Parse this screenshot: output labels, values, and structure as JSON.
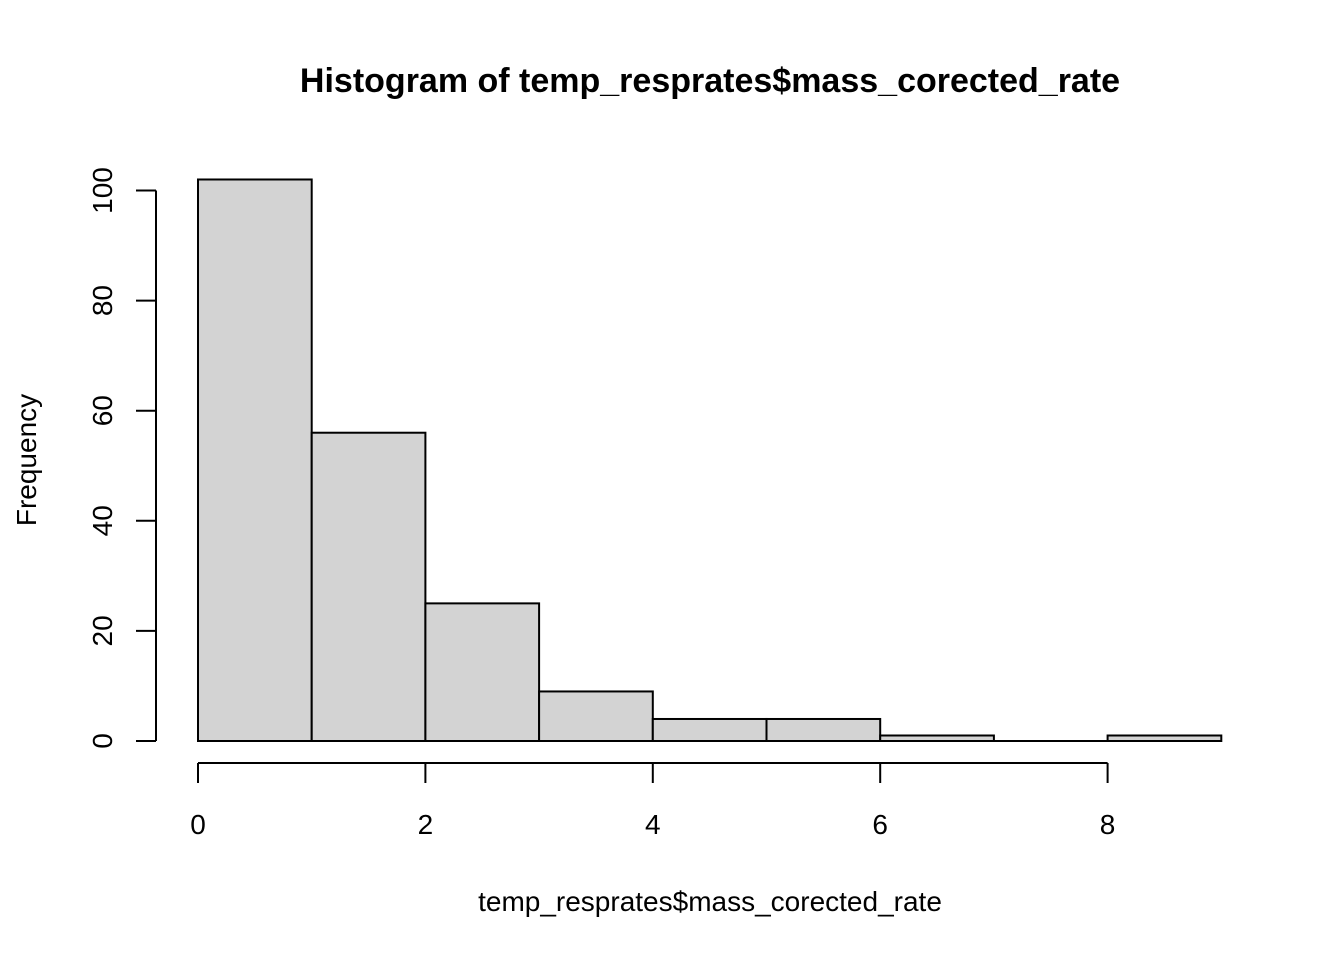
{
  "chart_data": {
    "type": "bar",
    "title": "Histogram of temp_resprates$mass_corected_rate",
    "xlabel": "temp_resprates$mass_corected_rate",
    "ylabel": "Frequency",
    "bins": [
      {
        "from": 0,
        "to": 1,
        "count": 102
      },
      {
        "from": 1,
        "to": 2,
        "count": 56
      },
      {
        "from": 2,
        "to": 3,
        "count": 25
      },
      {
        "from": 3,
        "to": 4,
        "count": 9
      },
      {
        "from": 4,
        "to": 5,
        "count": 4
      },
      {
        "from": 5,
        "to": 6,
        "count": 4
      },
      {
        "from": 6,
        "to": 7,
        "count": 1
      },
      {
        "from": 7,
        "to": 8,
        "count": 0
      },
      {
        "from": 8,
        "to": 9,
        "count": 1
      }
    ],
    "xticks": [
      "0",
      "2",
      "4",
      "6",
      "8"
    ],
    "yticks": [
      "0",
      "20",
      "40",
      "60",
      "80",
      "100"
    ],
    "xlim": [
      0,
      9
    ],
    "ylim": [
      0,
      102
    ],
    "bar_fill": "#d3d3d3",
    "bar_stroke": "#000000",
    "grid": false,
    "legend": "none"
  }
}
